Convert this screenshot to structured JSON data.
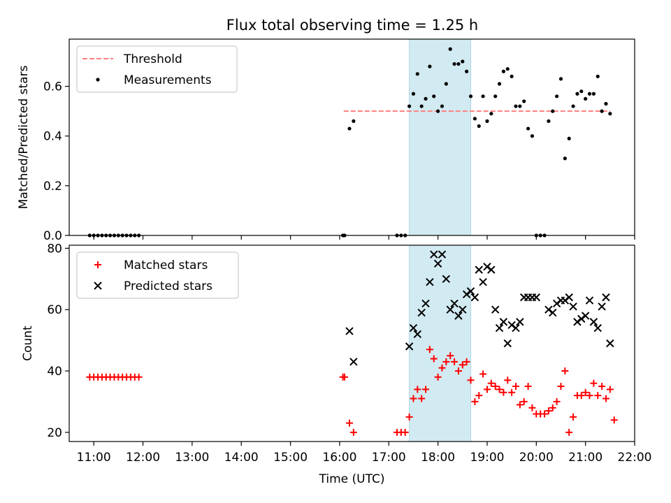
{
  "figure_title": "Flux total observing time = 1.25 h",
  "colors": {
    "threshold": "#ff7f7f",
    "measurement": "#000000",
    "matched": "#ff0000",
    "predicted": "#000000",
    "shade": "#add8e6"
  },
  "chart_data": [
    {
      "type": "scatter",
      "panel": "top",
      "ylabel": "Matched/Predicted stars",
      "xlabel": "",
      "xlim": [
        "10:30",
        "22:00"
      ],
      "ylim": [
        0,
        0.79
      ],
      "yticks": [
        "0.0",
        "0.2",
        "0.4",
        "0.6"
      ],
      "legend": {
        "position": "top-left",
        "entries": [
          "Threshold",
          "Measurements"
        ]
      },
      "threshold": {
        "name": "Threshold",
        "value": 0.5,
        "x_range": [
          "16:05",
          "21:30"
        ]
      },
      "shaded_interval": [
        "17:25",
        "18:40"
      ],
      "series": [
        {
          "name": "Measurements",
          "points": [
            [
              "10:55",
              0
            ],
            [
              "11:00",
              0
            ],
            [
              "11:05",
              0
            ],
            [
              "11:10",
              0
            ],
            [
              "11:15",
              0
            ],
            [
              "11:20",
              0
            ],
            [
              "11:25",
              0
            ],
            [
              "11:30",
              0
            ],
            [
              "11:35",
              0
            ],
            [
              "11:40",
              0
            ],
            [
              "11:45",
              0
            ],
            [
              "11:50",
              0
            ],
            [
              "11:55",
              0
            ],
            [
              "16:04",
              0
            ],
            [
              "16:06",
              0
            ],
            [
              "17:10",
              0
            ],
            [
              "17:15",
              0
            ],
            [
              "17:20",
              0
            ],
            [
              "16:12",
              0.43
            ],
            [
              "16:17",
              0.46
            ],
            [
              "17:25",
              0.52
            ],
            [
              "17:30",
              0.57
            ],
            [
              "17:35",
              0.65
            ],
            [
              "17:40",
              0.52
            ],
            [
              "17:45",
              0.55
            ],
            [
              "17:50",
              0.68
            ],
            [
              "17:55",
              0.56
            ],
            [
              "18:00",
              0.5
            ],
            [
              "18:05",
              0.52
            ],
            [
              "18:10",
              0.61
            ],
            [
              "18:15",
              0.75
            ],
            [
              "18:20",
              0.69
            ],
            [
              "18:25",
              0.69
            ],
            [
              "18:30",
              0.7
            ],
            [
              "18:35",
              0.66
            ],
            [
              "18:40",
              0.56
            ],
            [
              "18:45",
              0.47
            ],
            [
              "18:50",
              0.44
            ],
            [
              "18:55",
              0.56
            ],
            [
              "19:00",
              0.46
            ],
            [
              "19:05",
              0.49
            ],
            [
              "19:10",
              0.56
            ],
            [
              "19:15",
              0.61
            ],
            [
              "19:20",
              0.66
            ],
            [
              "19:25",
              0.67
            ],
            [
              "19:30",
              0.64
            ],
            [
              "19:35",
              0.52
            ],
            [
              "19:40",
              0.52
            ],
            [
              "19:45",
              0.54
            ],
            [
              "19:50",
              0.43
            ],
            [
              "19:55",
              0.4
            ],
            [
              "20:00",
              0
            ],
            [
              "20:05",
              0
            ],
            [
              "20:10",
              0
            ],
            [
              "20:15",
              0.46
            ],
            [
              "20:20",
              0.5
            ],
            [
              "20:25",
              0.56
            ],
            [
              "20:30",
              0.63
            ],
            [
              "20:35",
              0.31
            ],
            [
              "20:40",
              0.39
            ],
            [
              "20:45",
              0.52
            ],
            [
              "20:50",
              0.57
            ],
            [
              "20:55",
              0.58
            ],
            [
              "21:00",
              0.55
            ],
            [
              "21:05",
              0.57
            ],
            [
              "21:10",
              0.57
            ],
            [
              "21:15",
              0.64
            ],
            [
              "21:20",
              0.5
            ],
            [
              "21:25",
              0.53
            ],
            [
              "21:30",
              0.49
            ]
          ]
        }
      ]
    },
    {
      "type": "scatter",
      "panel": "bottom",
      "ylabel": "Count",
      "xlabel": "Time (UTC)",
      "xlim": [
        "10:30",
        "22:00"
      ],
      "ylim": [
        17,
        81
      ],
      "xticks": [
        "11:00",
        "12:00",
        "13:00",
        "14:00",
        "15:00",
        "16:00",
        "17:00",
        "18:00",
        "19:00",
        "20:00",
        "21:00",
        "22:00"
      ],
      "yticks": [
        "20",
        "40",
        "60",
        "80"
      ],
      "legend": {
        "position": "top-left",
        "entries": [
          "Matched stars",
          "Predicted stars"
        ]
      },
      "shaded_interval": [
        "17:25",
        "18:40"
      ],
      "series": [
        {
          "name": "Matched stars",
          "marker": "plus",
          "points": [
            [
              "10:55",
              38
            ],
            [
              "11:00",
              38
            ],
            [
              "11:05",
              38
            ],
            [
              "11:10",
              38
            ],
            [
              "11:15",
              38
            ],
            [
              "11:20",
              38
            ],
            [
              "11:25",
              38
            ],
            [
              "11:30",
              38
            ],
            [
              "11:35",
              38
            ],
            [
              "11:40",
              38
            ],
            [
              "11:45",
              38
            ],
            [
              "11:50",
              38
            ],
            [
              "11:55",
              38
            ],
            [
              "16:04",
              38
            ],
            [
              "16:06",
              38
            ],
            [
              "16:12",
              23
            ],
            [
              "16:17",
              20
            ],
            [
              "17:10",
              20
            ],
            [
              "17:15",
              20
            ],
            [
              "17:20",
              20
            ],
            [
              "17:25",
              25
            ],
            [
              "17:30",
              31
            ],
            [
              "17:35",
              34
            ],
            [
              "17:40",
              31
            ],
            [
              "17:45",
              34
            ],
            [
              "17:50",
              47
            ],
            [
              "17:55",
              44
            ],
            [
              "18:00",
              38
            ],
            [
              "18:05",
              41
            ],
            [
              "18:10",
              43
            ],
            [
              "18:15",
              45
            ],
            [
              "18:20",
              43
            ],
            [
              "18:25",
              40
            ],
            [
              "18:30",
              42
            ],
            [
              "18:35",
              43
            ],
            [
              "18:40",
              37
            ],
            [
              "18:45",
              30
            ],
            [
              "18:50",
              32
            ],
            [
              "18:55",
              39
            ],
            [
              "19:00",
              34
            ],
            [
              "19:05",
              36
            ],
            [
              "19:10",
              35
            ],
            [
              "19:15",
              34
            ],
            [
              "19:20",
              33
            ],
            [
              "19:25",
              37
            ],
            [
              "19:30",
              33
            ],
            [
              "19:35",
              35
            ],
            [
              "19:40",
              29
            ],
            [
              "19:45",
              30
            ],
            [
              "19:50",
              35
            ],
            [
              "19:55",
              28
            ],
            [
              "20:00",
              26
            ],
            [
              "20:05",
              26
            ],
            [
              "20:10",
              26
            ],
            [
              "20:15",
              27
            ],
            [
              "20:20",
              28
            ],
            [
              "20:25",
              30
            ],
            [
              "20:30",
              35
            ],
            [
              "20:35",
              40
            ],
            [
              "20:40",
              20
            ],
            [
              "20:45",
              25
            ],
            [
              "20:50",
              32
            ],
            [
              "20:55",
              32
            ],
            [
              "21:00",
              33
            ],
            [
              "21:05",
              32
            ],
            [
              "21:10",
              36
            ],
            [
              "21:15",
              32
            ],
            [
              "21:20",
              35
            ],
            [
              "21:25",
              31
            ],
            [
              "21:30",
              34
            ],
            [
              "21:35",
              24
            ]
          ]
        },
        {
          "name": "Predicted stars",
          "marker": "x",
          "points": [
            [
              "16:12",
              53
            ],
            [
              "16:17",
              43
            ],
            [
              "17:25",
              48
            ],
            [
              "17:30",
              54
            ],
            [
              "17:35",
              52
            ],
            [
              "17:40",
              59
            ],
            [
              "17:45",
              62
            ],
            [
              "17:50",
              69
            ],
            [
              "17:55",
              78
            ],
            [
              "18:00",
              75
            ],
            [
              "18:05",
              78
            ],
            [
              "18:10",
              70
            ],
            [
              "18:15",
              60
            ],
            [
              "18:20",
              62
            ],
            [
              "18:25",
              58
            ],
            [
              "18:30",
              60
            ],
            [
              "18:35",
              65
            ],
            [
              "18:40",
              66
            ],
            [
              "18:45",
              64
            ],
            [
              "18:50",
              73
            ],
            [
              "18:55",
              69
            ],
            [
              "19:00",
              74
            ],
            [
              "19:05",
              73
            ],
            [
              "19:10",
              60
            ],
            [
              "19:15",
              54
            ],
            [
              "19:20",
              56
            ],
            [
              "19:25",
              49
            ],
            [
              "19:30",
              55
            ],
            [
              "19:35",
              54
            ],
            [
              "19:40",
              56
            ],
            [
              "19:45",
              64
            ],
            [
              "19:50",
              64
            ],
            [
              "19:55",
              64
            ],
            [
              "20:00",
              64
            ],
            [
              "20:15",
              60
            ],
            [
              "20:20",
              59
            ],
            [
              "20:25",
              62
            ],
            [
              "20:30",
              63
            ],
            [
              "20:35",
              63
            ],
            [
              "20:40",
              64
            ],
            [
              "20:45",
              61
            ],
            [
              "20:50",
              56
            ],
            [
              "20:55",
              57
            ],
            [
              "21:00",
              58
            ],
            [
              "21:05",
              63
            ],
            [
              "21:10",
              56
            ],
            [
              "21:15",
              54
            ],
            [
              "21:20",
              61
            ],
            [
              "21:25",
              64
            ],
            [
              "21:30",
              49
            ]
          ]
        }
      ]
    }
  ]
}
